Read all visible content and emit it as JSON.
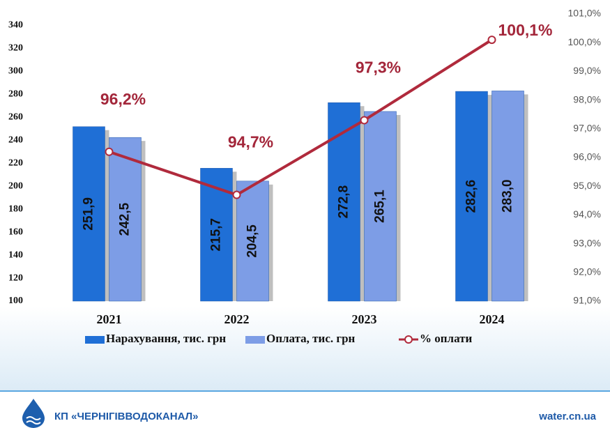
{
  "chart_data": {
    "type": "bar",
    "categories": [
      "2021",
      "2022",
      "2023",
      "2024"
    ],
    "series": [
      {
        "name": "Нарахування, тис. грн",
        "color": "#1f6fd6",
        "values": [
          251.9,
          215.7,
          272.8,
          282.6
        ],
        "value_labels": [
          "251,9",
          "215,7",
          "272,8",
          "282,6"
        ]
      },
      {
        "name": "Оплата, тис. грн",
        "color": "#7d9de6",
        "values": [
          242.5,
          204.5,
          265.1,
          283.0
        ],
        "value_labels": [
          "242,5",
          "204,5",
          "265,1",
          "283,0"
        ]
      },
      {
        "name": "% оплати",
        "color": "#b02a3c",
        "axis": "y2",
        "values": [
          96.2,
          94.7,
          97.3,
          100.1
        ],
        "value_labels": [
          "96,2%",
          "94,7%",
          "97,3%",
          "100,1%"
        ]
      }
    ],
    "ylim": [
      100,
      350
    ],
    "yticks": [
      100,
      120,
      140,
      160,
      180,
      200,
      220,
      240,
      260,
      280,
      300,
      320,
      340
    ],
    "y2lim": [
      91,
      101
    ],
    "y2ticks": [
      {
        "value": 91,
        "label": "91,0%"
      },
      {
        "value": 92,
        "label": "92,0%"
      },
      {
        "value": 93,
        "label": "93,0%"
      },
      {
        "value": 94,
        "label": "94,0%"
      },
      {
        "value": 95,
        "label": "95,0%"
      },
      {
        "value": 96,
        "label": "96,0%"
      },
      {
        "value": 97,
        "label": "97,0%"
      },
      {
        "value": 98,
        "label": "98,0%"
      },
      {
        "value": 99,
        "label": "99,0%"
      },
      {
        "value": 100,
        "label": "100,0%"
      },
      {
        "value": 101,
        "label": "101,0%"
      }
    ],
    "legend": "bottom"
  },
  "footer": {
    "left": "КП «ЧЕРНІГІВВОДОКАНАЛ»",
    "right": "water.cn.ua"
  }
}
